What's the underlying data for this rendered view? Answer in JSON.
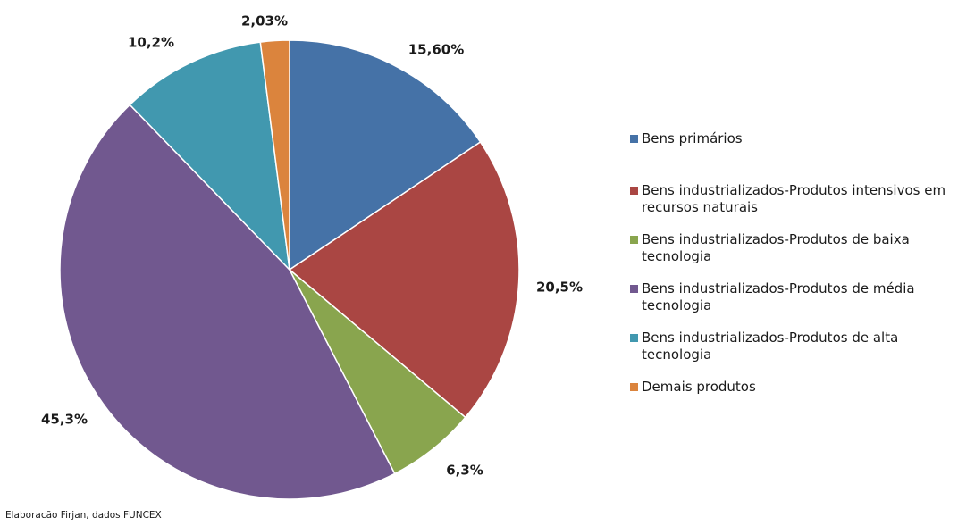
{
  "chart_data": {
    "type": "pie",
    "title": "",
    "start": "top",
    "direction": "clockwise",
    "legend_position": "right",
    "slices": [
      {
        "label": "Bens primários",
        "value": 15.6,
        "display": "15,60%",
        "color": "#4572A7"
      },
      {
        "label": "Bens industrializados-Produtos intensivos em recursos naturais",
        "value": 20.5,
        "display": "20,5%",
        "color": "#AA4643"
      },
      {
        "label": "Bens industrializados-Produtos de baixa tecnologia",
        "value": 6.3,
        "display": "6,3%",
        "color": "#89A54E"
      },
      {
        "label": "Bens industrializados-Produtos de média tecnologia",
        "value": 45.3,
        "display": "45,3%",
        "color": "#71588F"
      },
      {
        "label": "Bens industrializados-Produtos de alta tecnologia",
        "value": 10.2,
        "display": "10,2%",
        "color": "#4198AF"
      },
      {
        "label": "Demais produtos",
        "value": 2.03,
        "display": "2,03%",
        "color": "#DB843D"
      }
    ]
  },
  "source_note": "Elaboracão Firjan, dados FUNCEX"
}
